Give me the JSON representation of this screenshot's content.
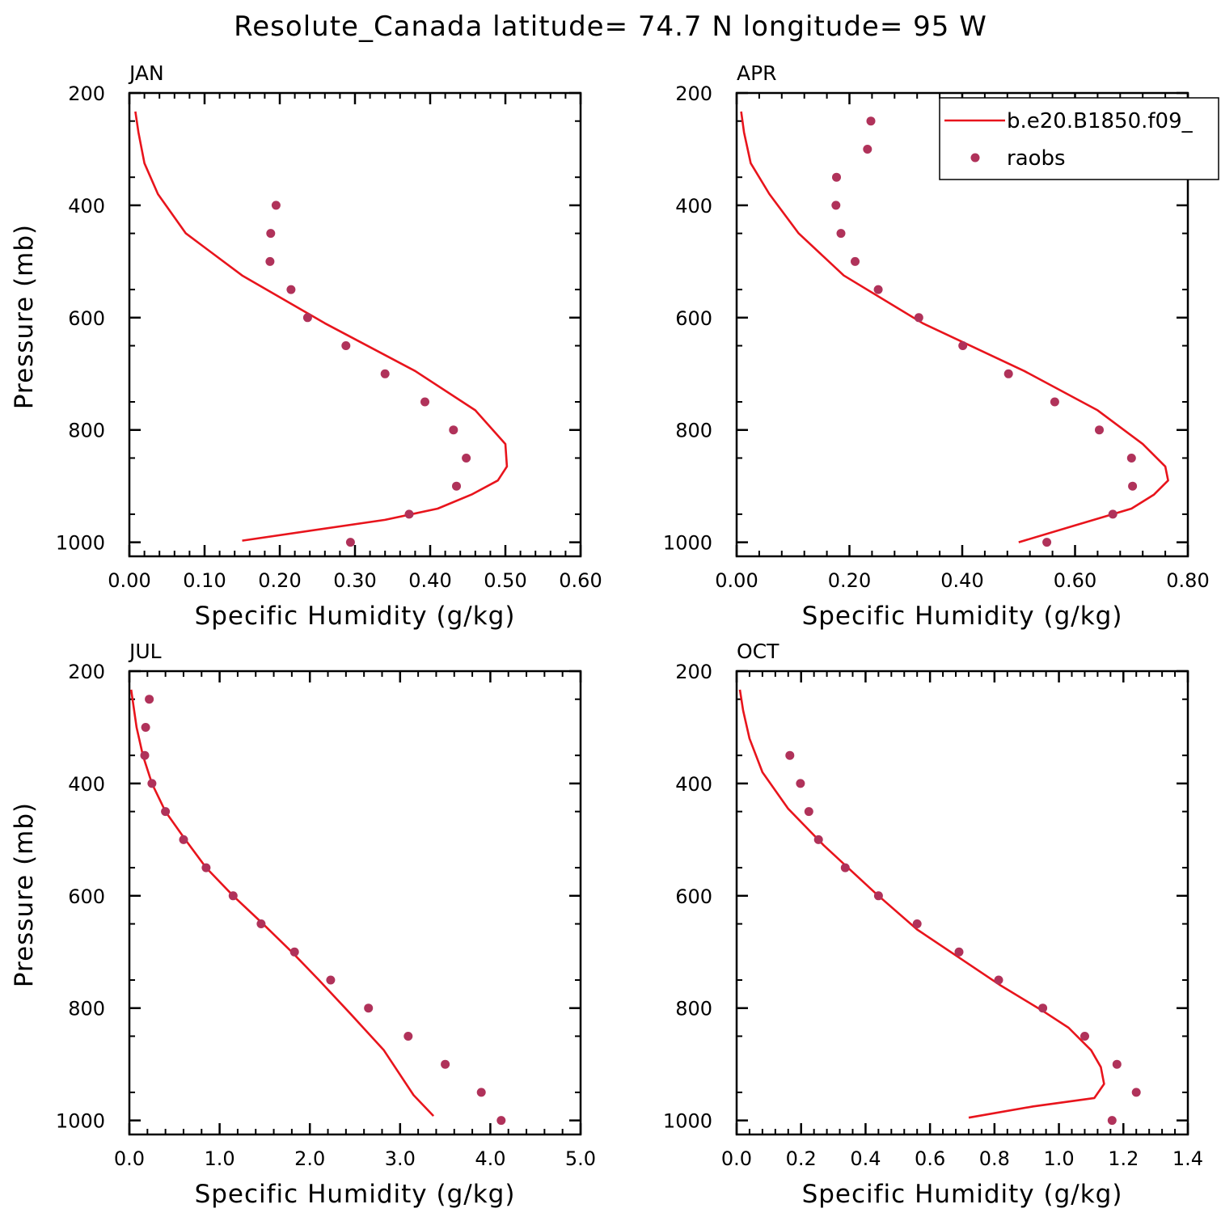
{
  "title": "Resolute_Canada  latitude= 74.7 N longitude= 95 W",
  "colors": {
    "model": "#e8141c",
    "obs": "#b0325a",
    "axis": "#000000"
  },
  "legend": {
    "model_label": "b.e20.B1850.f09_",
    "obs_label": "raobs",
    "placement": "top-right"
  },
  "chart_data": [
    {
      "type": "line",
      "panel": "JAN",
      "xlabel": "Specific Humidity (g/kg)",
      "ylabel": "Pressure (mb)",
      "xlim": [
        0,
        0.6
      ],
      "ylim": [
        200,
        1025
      ],
      "y_inverted": true,
      "xticks": [
        "0.00",
        "0.10",
        "0.20",
        "0.30",
        "0.40",
        "0.50",
        "0.60"
      ],
      "yticks": [
        "200",
        "400",
        "600",
        "800",
        "1000"
      ],
      "series": [
        {
          "name": "b.e20.B1850.f09_",
          "kind": "line",
          "x": [
            0.008,
            0.012,
            0.02,
            0.038,
            0.075,
            0.15,
            0.26,
            0.38,
            0.46,
            0.5,
            0.502,
            0.49,
            0.455,
            0.41,
            0.34,
            0.15
          ],
          "y": [
            233,
            270,
            325,
            380,
            450,
            525,
            610,
            695,
            765,
            825,
            865,
            890,
            915,
            940,
            960,
            997
          ]
        },
        {
          "name": "raobs",
          "kind": "scatter",
          "x": [
            0.195,
            0.188,
            0.187,
            0.215,
            0.237,
            0.288,
            0.34,
            0.393,
            0.431,
            0.448,
            0.435,
            0.372,
            0.294
          ],
          "y": [
            400,
            450,
            500,
            550,
            600,
            650,
            700,
            750,
            800,
            850,
            900,
            950,
            1000
          ]
        }
      ]
    },
    {
      "type": "line",
      "panel": "APR",
      "xlabel": "Specific Humidity (g/kg)",
      "ylabel": "Pressure (mb)",
      "xlim": [
        0,
        0.8
      ],
      "ylim": [
        200,
        1025
      ],
      "y_inverted": true,
      "xticks": [
        "0.00",
        "0.20",
        "0.40",
        "0.60",
        "0.80"
      ],
      "yticks": [
        "200",
        "400",
        "600",
        "800",
        "1000"
      ],
      "series": [
        {
          "name": "b.e20.B1850.f09_",
          "kind": "line",
          "x": [
            0.008,
            0.013,
            0.025,
            0.058,
            0.11,
            0.19,
            0.33,
            0.51,
            0.64,
            0.72,
            0.76,
            0.765,
            0.74,
            0.7,
            0.6,
            0.5
          ],
          "y": [
            233,
            270,
            325,
            380,
            450,
            525,
            610,
            695,
            765,
            825,
            865,
            890,
            915,
            940,
            970,
            1000
          ]
        },
        {
          "name": "raobs",
          "kind": "scatter",
          "x": [
            0.238,
            0.232,
            0.177,
            0.176,
            0.185,
            0.21,
            0.251,
            0.323,
            0.401,
            0.482,
            0.564,
            0.643,
            0.7,
            0.702,
            0.667,
            0.55
          ],
          "y": [
            250,
            300,
            350,
            400,
            450,
            500,
            550,
            600,
            650,
            700,
            750,
            800,
            850,
            900,
            950,
            1000
          ]
        }
      ]
    },
    {
      "type": "line",
      "panel": "JUL",
      "xlabel": "Specific Humidity (g/kg)",
      "ylabel": "Pressure (mb)",
      "xlim": [
        0,
        5.0
      ],
      "ylim": [
        200,
        1025
      ],
      "y_inverted": true,
      "xticks": [
        "0.0",
        "1.0",
        "2.0",
        "3.0",
        "4.0",
        "5.0"
      ],
      "yticks": [
        "200",
        "400",
        "600",
        "800",
        "1000"
      ],
      "series": [
        {
          "name": "b.e20.B1850.f09_",
          "kind": "line",
          "x": [
            0.02,
            0.08,
            0.15,
            0.25,
            0.4,
            0.62,
            0.85,
            1.15,
            1.48,
            1.8,
            2.1,
            2.45,
            2.82,
            3.15,
            3.37
          ],
          "y": [
            233,
            300,
            350,
            400,
            450,
            500,
            550,
            600,
            650,
            700,
            750,
            810,
            875,
            955,
            992
          ]
        },
        {
          "name": "raobs",
          "kind": "scatter",
          "x": [
            0.22,
            0.18,
            0.17,
            0.25,
            0.4,
            0.6,
            0.85,
            1.15,
            1.46,
            1.83,
            2.23,
            2.65,
            3.09,
            3.5,
            3.9,
            4.12
          ],
          "y": [
            250,
            300,
            350,
            400,
            450,
            500,
            550,
            600,
            650,
            700,
            750,
            800,
            850,
            900,
            950,
            1000
          ]
        }
      ]
    },
    {
      "type": "line",
      "panel": "OCT",
      "xlabel": "Specific Humidity (g/kg)",
      "ylabel": "Pressure (mb)",
      "xlim": [
        0,
        1.4
      ],
      "ylim": [
        200,
        1025
      ],
      "y_inverted": true,
      "xticks": [
        "0.0",
        "0.2",
        "0.4",
        "0.6",
        "0.8",
        "1.0",
        "1.2",
        "1.4"
      ],
      "yticks": [
        "200",
        "400",
        "600",
        "800",
        "1000"
      ],
      "series": [
        {
          "name": "b.e20.B1850.f09_",
          "kind": "line",
          "x": [
            0.01,
            0.02,
            0.04,
            0.08,
            0.16,
            0.27,
            0.43,
            0.56,
            0.69,
            0.82,
            0.95,
            1.03,
            1.1,
            1.13,
            1.14,
            1.11,
            0.92,
            0.72
          ],
          "y": [
            233,
            270,
            320,
            380,
            445,
            510,
            595,
            660,
            710,
            760,
            805,
            835,
            875,
            905,
            935,
            960,
            975,
            995
          ]
        },
        {
          "name": "raobs",
          "kind": "scatter",
          "x": [
            0.165,
            0.198,
            0.224,
            0.254,
            0.337,
            0.44,
            0.56,
            0.69,
            0.813,
            0.95,
            1.08,
            1.18,
            1.24,
            1.165
          ],
          "y": [
            350,
            400,
            450,
            500,
            550,
            600,
            650,
            700,
            750,
            800,
            850,
            900,
            950,
            1000
          ]
        }
      ]
    }
  ]
}
